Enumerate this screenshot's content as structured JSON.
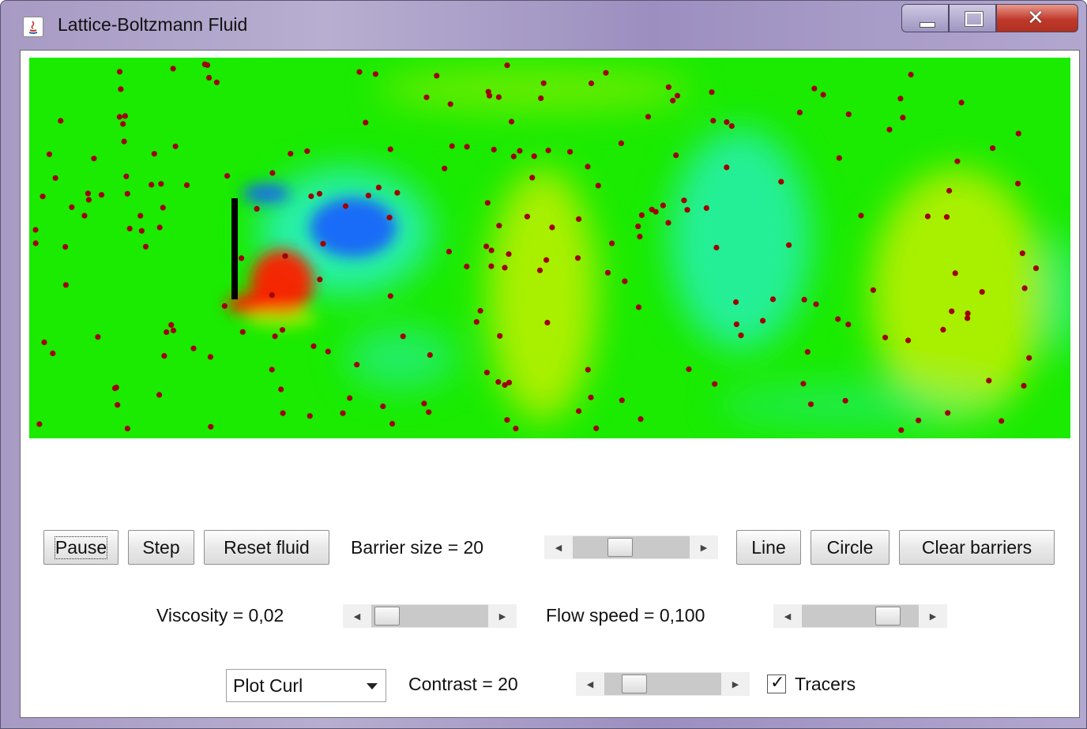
{
  "window": {
    "title": "Lattice-Boltzmann Fluid",
    "app_icon": "java-icon",
    "controls": [
      "minimize-icon",
      "maximize-icon",
      "close-icon"
    ]
  },
  "simulation": {
    "plot_mode": "Plot Curl",
    "colors": {
      "background": "#1aeb00",
      "positive_curl": "#ff1a00",
      "negative_curl": "#1a5cff",
      "cyan": "#29f0c8",
      "yellow": "#d9f000",
      "barrier": "#000000",
      "tracer": "#a00000"
    }
  },
  "controls": {
    "pause_label": "Pause",
    "step_label": "Step",
    "reset_label": "Reset fluid",
    "barrier_size_label": "Barrier size = 20",
    "barrier_size_value": 20,
    "line_label": "Line",
    "circle_label": "Circle",
    "clear_label": "Clear barriers",
    "viscosity_label": "Viscosity = 0,02",
    "flow_speed_label": "Flow speed = 0,100",
    "plot_select_value": "Plot Curl",
    "contrast_label": "Contrast = 20",
    "tracers_label": "Tracers",
    "tracers_checked": true
  }
}
